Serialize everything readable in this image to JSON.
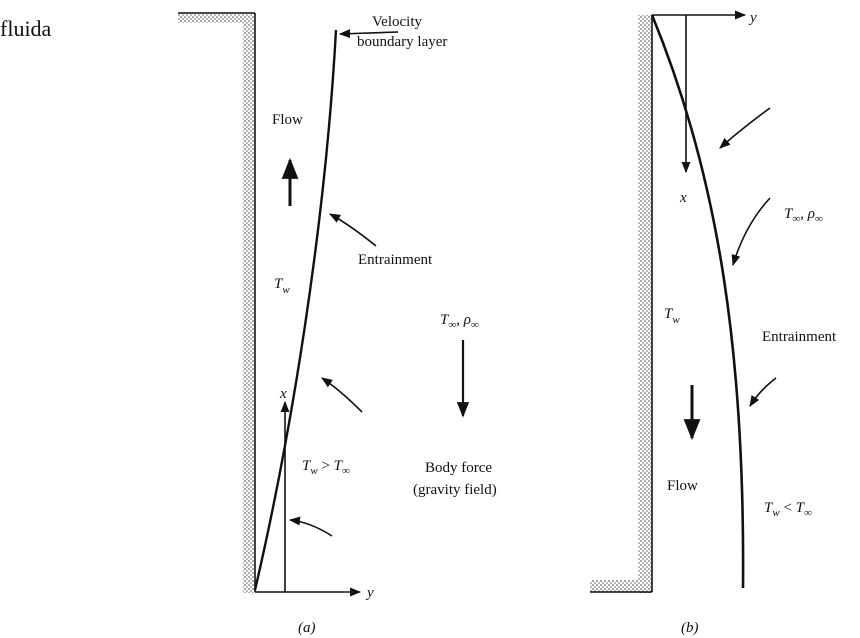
{
  "caption_fragment": "fluida",
  "panel_a": {
    "velocity_label": [
      "Velocity",
      "boundary layer"
    ],
    "flow": "Flow",
    "entrainment": "Entrainment",
    "wall_temp": {
      "base": "T",
      "sub": "w"
    },
    "ambient": {
      "t": "T",
      "t_sub": "∞",
      "sep": ", ",
      "rho": "ρ",
      "rho_sub": "∞"
    },
    "axis_x": "x",
    "axis_y": "y",
    "condition": {
      "left": "T",
      "left_sub": "w",
      "op": " > ",
      "right": "T",
      "right_sub": "∞"
    },
    "body_force": [
      "Body force",
      "(gravity field)"
    ],
    "label": "(a)"
  },
  "panel_b": {
    "axis_y": "y",
    "axis_x": "x",
    "ambient": {
      "t": "T",
      "t_sub": "∞",
      "sep": ", ",
      "rho": "ρ",
      "rho_sub": "∞"
    },
    "wall_temp": {
      "base": "T",
      "sub": "w"
    },
    "entrainment": "Entrainment",
    "flow": "Flow",
    "condition": {
      "left": "T",
      "left_sub": "w",
      "op": " < ",
      "right": "T",
      "right_sub": "∞"
    },
    "label": "(b)"
  }
}
